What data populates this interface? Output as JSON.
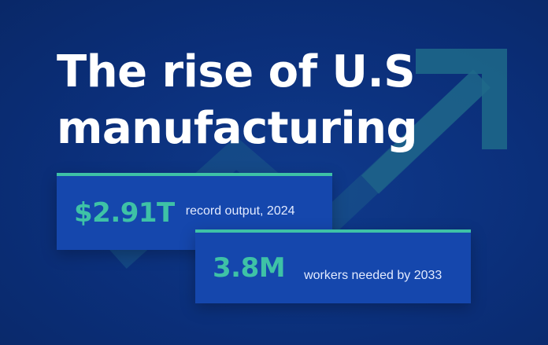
{
  "headline": {
    "line1": "The rise of U.S",
    "line2": "manufacturing"
  },
  "stats": [
    {
      "value": "$2.91T",
      "label": "record output, 2024"
    },
    {
      "value": "3.8M",
      "label": "workers needed by 2033"
    }
  ],
  "colors": {
    "background": "#0b2f7a",
    "card": "#1547ad",
    "accent": "#3ec2a6",
    "text": "#ffffff",
    "arrow": "#1f5f86"
  },
  "icons": {
    "background": "upward-trend-arrow-icon"
  }
}
